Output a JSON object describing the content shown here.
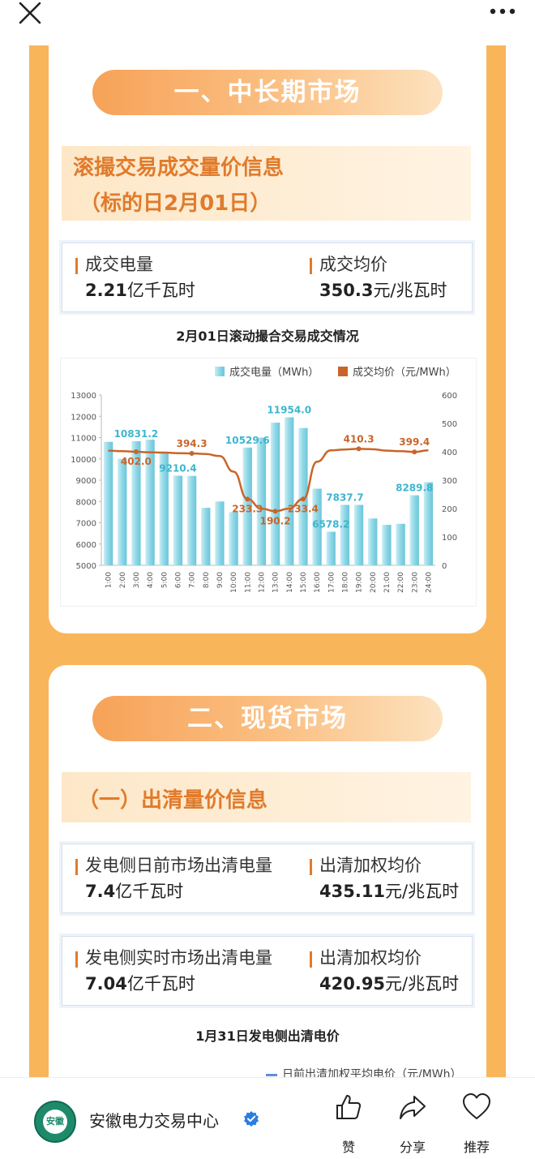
{
  "section1": {
    "heading": "一、中长期市场",
    "subheading_line1": "滚撮交易成交量价信息",
    "subheading_line2": "（标的日2月01日）",
    "volume_label": "成交电量",
    "volume_value": "2.21",
    "volume_unit": "亿千瓦时",
    "price_label": "成交均价",
    "price_value": "350.3",
    "price_unit": "元/兆瓦时",
    "chart_title": "2月01日滚动撮合交易成交情况"
  },
  "chart_data": {
    "type": "bar",
    "title": "2月01日滚动撮合交易成交情况",
    "categories": [
      "1:00",
      "2:00",
      "3:00",
      "4:00",
      "5:00",
      "6:00",
      "7:00",
      "8:00",
      "9:00",
      "10:00",
      "11:00",
      "12:00",
      "13:00",
      "14:00",
      "15:00",
      "16:00",
      "17:00",
      "18:00",
      "19:00",
      "20:00",
      "21:00",
      "22:00",
      "23:00",
      "24:00"
    ],
    "series": [
      {
        "name": "成交电量（MWh）",
        "type": "bar",
        "axis": "left",
        "values": [
          10800,
          10000,
          10831.2,
          10900,
          10300,
          9210.4,
          9200,
          7700,
          8000,
          7500,
          10529.6,
          11000,
          11700,
          11954.0,
          11450,
          8600,
          6578.2,
          7837.7,
          7837.7,
          7200,
          6900,
          6950,
          8289.8,
          8900
        ]
      },
      {
        "name": "成交均价（元/MWh）",
        "type": "line",
        "axis": "right",
        "values": [
          404,
          402.0,
          400,
          398,
          397,
          395,
          394.3,
          392,
          385,
          330,
          233.3,
          200,
          190.2,
          200,
          233.4,
          365,
          405,
          408,
          410.3,
          409,
          404,
          402,
          399.4,
          405
        ]
      }
    ],
    "data_labels": [
      {
        "index": 2,
        "series": 0,
        "text": "10831.2"
      },
      {
        "index": 5,
        "series": 0,
        "text": "9210.4"
      },
      {
        "index": 10,
        "series": 0,
        "text": "10529.6"
      },
      {
        "index": 13,
        "series": 0,
        "text": "11954.0"
      },
      {
        "index": 16,
        "series": 0,
        "text": "6578.2"
      },
      {
        "index": 17,
        "series": 0,
        "text": "7837.7"
      },
      {
        "index": 22,
        "series": 0,
        "text": "8289.8"
      },
      {
        "index": 2,
        "series": 1,
        "text": "402.0"
      },
      {
        "index": 6,
        "series": 1,
        "text": "394.3"
      },
      {
        "index": 10,
        "series": 1,
        "text": "233.3"
      },
      {
        "index": 12,
        "series": 1,
        "text": "190.2"
      },
      {
        "index": 14,
        "series": 1,
        "text": "233.4"
      },
      {
        "index": 18,
        "series": 1,
        "text": "410.3"
      },
      {
        "index": 22,
        "series": 1,
        "text": "399.4"
      }
    ],
    "y_left": {
      "min": 5000,
      "max": 13000,
      "ticks": [
        "5000",
        "6000",
        "7000",
        "8000",
        "9000",
        "10000",
        "11000",
        "12000",
        "13000"
      ]
    },
    "y_right": {
      "min": 0,
      "max": 600,
      "ticks": [
        "0",
        "100",
        "200",
        "300",
        "400",
        "500",
        "600"
      ]
    },
    "legend_position": "top-right",
    "grid": false,
    "colors": {
      "bar": "#8fd7e6",
      "line": "#c9652a"
    }
  },
  "section2": {
    "heading": "二、现货市场",
    "subheading": "（一）出清量价信息",
    "dayahead_label": "发电侧日前市场出清电量",
    "dayahead_value": "7.4",
    "dayahead_unit": "亿千瓦时",
    "dayahead_price_label": "出清加权均价",
    "dayahead_price_value": "435.11",
    "dayahead_price_unit": "元/兆瓦时",
    "realtime_label": "发电侧实时市场出清电量",
    "realtime_value": "7.04",
    "realtime_unit": "亿千瓦时",
    "realtime_price_label": "出清加权均价",
    "realtime_price_value": "420.95",
    "realtime_price_unit": "元/兆瓦时",
    "chart2_title": "1月31日发电侧出清电价",
    "chart2_legend": "日前出清加权平均电价（元/MWh）"
  },
  "account": {
    "name": "安徽电力交易中心",
    "logo_text": "安徽"
  },
  "actions": {
    "like": "赞",
    "share": "分享",
    "recommend": "推荐"
  },
  "icons": {
    "close": "close-icon",
    "more": "more-icon",
    "like": "thumbs-up-icon",
    "share": "share-arrow-icon",
    "recommend": "heart-icon",
    "verified": "verified-badge-icon"
  }
}
